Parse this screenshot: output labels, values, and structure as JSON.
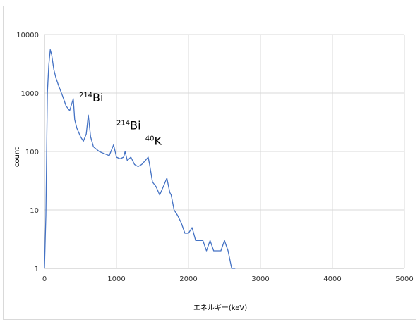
{
  "chart_data": {
    "type": "line",
    "title": "",
    "xlabel": "エネルギー(keV)",
    "ylabel": "count",
    "xlim": [
      0,
      5000
    ],
    "ylim": [
      1,
      10000
    ],
    "y_scale": "log",
    "grid": true,
    "legend": "none",
    "x_ticks": [
      "0",
      "1000",
      "2000",
      "3000",
      "4000",
      "5000"
    ],
    "y_ticks": [
      "1",
      "10",
      "100",
      "1000",
      "10000"
    ],
    "series": [
      {
        "color": "#4472c4",
        "x": [
          0,
          20,
          40,
          60,
          80,
          100,
          130,
          160,
          200,
          250,
          300,
          350,
          400,
          420,
          450,
          500,
          540,
          580,
          609,
          640,
          680,
          720,
          760,
          800,
          850,
          900,
          960,
          1000,
          1050,
          1100,
          1120,
          1150,
          1200,
          1250,
          1300,
          1350,
          1400,
          1440,
          1460,
          1500,
          1550,
          1600,
          1650,
          1700,
          1740,
          1760,
          1800,
          1850,
          1900,
          1950,
          2000,
          2050,
          2100,
          2150,
          2200,
          2250,
          2300,
          2350,
          2400,
          2450,
          2500,
          2550,
          2600,
          2650
        ],
        "values": [
          1,
          8,
          1000,
          3000,
          5500,
          4500,
          2500,
          1800,
          1300,
          900,
          600,
          500,
          800,
          350,
          250,
          180,
          150,
          200,
          420,
          180,
          120,
          110,
          100,
          95,
          90,
          85,
          130,
          80,
          75,
          80,
          100,
          70,
          80,
          60,
          55,
          60,
          70,
          80,
          60,
          30,
          25,
          18,
          25,
          35,
          20,
          18,
          10,
          8,
          6,
          4,
          4,
          5,
          3,
          3,
          3,
          2,
          3,
          2,
          2,
          2,
          3,
          2,
          1,
          1
        ]
      }
    ],
    "annotations": [
      {
        "sup": "214",
        "text": "Bi",
        "x": 480,
        "y": 720
      },
      {
        "sup": "214",
        "text": "Bi",
        "x": 1000,
        "y": 240
      },
      {
        "sup": "40",
        "text": "K",
        "x": 1400,
        "y": 130
      }
    ]
  }
}
